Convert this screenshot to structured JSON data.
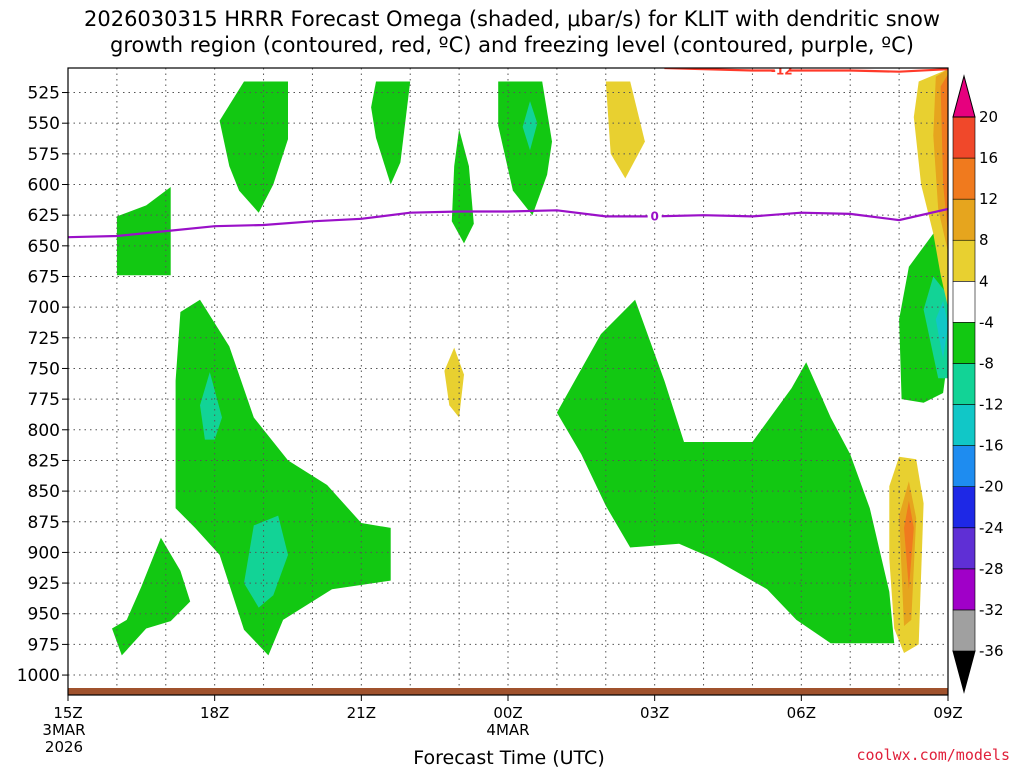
{
  "title": {
    "line1": "2026030315 HRRR Forecast Omega (shaded, μbar/s) for KLIT with dendritic snow",
    "line2": "growth region (contoured, red, ºC) and freezing level (contoured, purple, ºC)"
  },
  "credit": "coolwx.com/models",
  "chart_data": {
    "type": "time-height contour",
    "title": "2026030315 HRRR Forecast Omega (shaded, μbar/s) for KLIT with dendritic snow growth region (contoured, red, ºC) and freezing level (contoured, purple, ºC)",
    "xlabel": "Forecast Time (UTC)",
    "ylabel": "",
    "x_range_hours": [
      0,
      18
    ],
    "x_ticks": [
      {
        "hour": 0,
        "label": "15Z",
        "sub1": "3MAR",
        "sub2": "2026"
      },
      {
        "hour": 3,
        "label": "18Z",
        "sub1": "",
        "sub2": ""
      },
      {
        "hour": 6,
        "label": "21Z",
        "sub1": "",
        "sub2": ""
      },
      {
        "hour": 9,
        "label": "00Z",
        "sub1": "4MAR",
        "sub2": ""
      },
      {
        "hour": 12,
        "label": "03Z",
        "sub1": "",
        "sub2": ""
      },
      {
        "hour": 15,
        "label": "06Z",
        "sub1": "",
        "sub2": ""
      },
      {
        "hour": 18,
        "label": "09Z",
        "sub1": "",
        "sub2": ""
      }
    ],
    "y_range_hpa": [
      1013,
      505
    ],
    "y_ticks": [
      525,
      550,
      575,
      600,
      625,
      650,
      675,
      700,
      725,
      750,
      775,
      800,
      825,
      850,
      875,
      900,
      925,
      950,
      975,
      1000
    ],
    "freezing_level": {
      "label": "0",
      "color": "#9a10c8",
      "points": [
        [
          0,
          643
        ],
        [
          1,
          642
        ],
        [
          2,
          638
        ],
        [
          3,
          634
        ],
        [
          4,
          633
        ],
        [
          5,
          630
        ],
        [
          6,
          628
        ],
        [
          7,
          623
        ],
        [
          8,
          622
        ],
        [
          9,
          622
        ],
        [
          10,
          621
        ],
        [
          11,
          626
        ],
        [
          12,
          626
        ],
        [
          13,
          625
        ],
        [
          14,
          626
        ],
        [
          15,
          623
        ],
        [
          16,
          624
        ],
        [
          17,
          629
        ],
        [
          18,
          620
        ]
      ]
    },
    "dgz_contour": {
      "label": "-12",
      "color": "#ff3a2a",
      "points": [
        [
          12.2,
          505
        ],
        [
          13,
          506
        ],
        [
          14,
          507
        ],
        [
          15,
          507
        ],
        [
          16,
          507
        ],
        [
          17,
          508
        ],
        [
          18,
          506
        ]
      ]
    },
    "surface_color": "#a0522d",
    "colorbar": {
      "levels": [
        -36,
        -32,
        -28,
        -24,
        -20,
        -16,
        -12,
        -8,
        -4,
        4,
        8,
        12,
        16,
        20
      ],
      "labels": [
        "-36",
        "-32",
        "-28",
        "-24",
        "-20",
        "-16",
        "-12",
        "-8",
        "-4",
        "4",
        "8",
        "12",
        "16",
        "20"
      ],
      "colors": [
        "#000000",
        "#a0a0a0",
        "#a000c8",
        "#5f2fd5",
        "#1e28e6",
        "#1e8cf0",
        "#11c7c7",
        "#12d396",
        "#12c812",
        "#ffffff",
        "#e8d030",
        "#e6a51e",
        "#f07a1e",
        "#f0482a",
        "#ee1a5a",
        "#e6007e"
      ]
    },
    "omega_regions": [
      {
        "value": -6,
        "pts": [
          [
            3.6,
            516
          ],
          [
            4.5,
            516
          ],
          [
            4.5,
            563
          ],
          [
            4.2,
            600
          ],
          [
            3.9,
            623
          ],
          [
            3.5,
            605
          ],
          [
            3.3,
            585
          ],
          [
            3.1,
            548
          ]
        ]
      },
      {
        "value": -6,
        "pts": [
          [
            6.3,
            516
          ],
          [
            7,
            516
          ],
          [
            6.8,
            582
          ],
          [
            6.6,
            600
          ],
          [
            6.3,
            562
          ],
          [
            6.2,
            537
          ]
        ]
      },
      {
        "value": -6,
        "pts": [
          [
            9.3,
            516
          ],
          [
            9.7,
            516
          ],
          [
            9.9,
            565
          ],
          [
            9.8,
            592
          ],
          [
            9.5,
            625
          ],
          [
            9.1,
            605
          ],
          [
            8.8,
            552
          ],
          [
            8.8,
            516
          ]
        ]
      },
      {
        "value": -6,
        "pts": [
          [
            8.0,
            555
          ],
          [
            8.2,
            585
          ],
          [
            8.3,
            632
          ],
          [
            8.1,
            648
          ],
          [
            7.85,
            630
          ],
          [
            7.9,
            585
          ]
        ]
      },
      {
        "value": -6,
        "pts": [
          [
            1.0,
            626
          ],
          [
            1.6,
            617
          ],
          [
            2.1,
            602
          ],
          [
            2.1,
            674
          ],
          [
            1.0,
            674
          ]
        ]
      },
      {
        "value": -6,
        "pts": [
          [
            2.2,
            864
          ],
          [
            2.2,
            760
          ],
          [
            2.3,
            704
          ],
          [
            2.7,
            694
          ],
          [
            3.3,
            732
          ],
          [
            3.8,
            790
          ],
          [
            4.5,
            825
          ],
          [
            5.3,
            845
          ],
          [
            6.0,
            876
          ],
          [
            6.6,
            880
          ],
          [
            6.6,
            923
          ],
          [
            5.4,
            930
          ],
          [
            4.4,
            955
          ],
          [
            4.1,
            984
          ],
          [
            3.6,
            963
          ],
          [
            3.1,
            902
          ],
          [
            2.6,
            880
          ]
        ]
      },
      {
        "value": -6,
        "pts": [
          [
            0.9,
            962
          ],
          [
            1.2,
            955
          ],
          [
            1.5,
            928
          ],
          [
            1.9,
            888
          ],
          [
            2.3,
            915
          ],
          [
            2.5,
            940
          ],
          [
            2.1,
            956
          ],
          [
            1.6,
            962
          ],
          [
            1.1,
            984
          ]
        ]
      },
      {
        "value": -6,
        "pts": [
          [
            10.0,
            786
          ],
          [
            10.9,
            722
          ],
          [
            11.6,
            694
          ],
          [
            12.2,
            760
          ],
          [
            12.6,
            810
          ],
          [
            14.0,
            810
          ],
          [
            14.8,
            766
          ],
          [
            15.1,
            745
          ],
          [
            15.6,
            790
          ],
          [
            16.0,
            820
          ],
          [
            16.4,
            864
          ],
          [
            16.8,
            932
          ],
          [
            16.9,
            974
          ],
          [
            15.6,
            974
          ],
          [
            14.9,
            955
          ],
          [
            14.3,
            930
          ],
          [
            13.2,
            905
          ],
          [
            12.5,
            893
          ],
          [
            11.5,
            896
          ],
          [
            11.0,
            862
          ],
          [
            10.5,
            820
          ]
        ]
      },
      {
        "value": -6,
        "pts": [
          [
            17.05,
            775
          ],
          [
            17.0,
            710
          ],
          [
            17.2,
            667
          ],
          [
            17.7,
            640
          ],
          [
            18.0,
            647
          ],
          [
            18.0,
            740
          ],
          [
            17.9,
            770
          ],
          [
            17.5,
            778
          ]
        ]
      },
      {
        "value": -10,
        "pts": [
          [
            17.5,
            702
          ],
          [
            17.7,
            675
          ],
          [
            18.0,
            690
          ],
          [
            18.0,
            758
          ],
          [
            17.8,
            758
          ]
        ]
      },
      {
        "value": -14,
        "pts": [
          [
            17.75,
            710
          ],
          [
            17.9,
            695
          ],
          [
            18.0,
            715
          ],
          [
            17.9,
            742
          ]
        ]
      },
      {
        "value": -10,
        "pts": [
          [
            2.7,
            780
          ],
          [
            2.9,
            753
          ],
          [
            3.15,
            790
          ],
          [
            3.0,
            808
          ],
          [
            2.8,
            808
          ]
        ]
      },
      {
        "value": -10,
        "pts": [
          [
            3.6,
            925
          ],
          [
            3.8,
            878
          ],
          [
            4.3,
            870
          ],
          [
            4.5,
            902
          ],
          [
            4.2,
            935
          ],
          [
            3.9,
            945
          ]
        ]
      },
      {
        "value": -10,
        "pts": [
          [
            9.3,
            553
          ],
          [
            9.45,
            532
          ],
          [
            9.6,
            550
          ],
          [
            9.45,
            572
          ]
        ]
      },
      {
        "value": 6,
        "pts": [
          [
            7.7,
            752
          ],
          [
            7.9,
            733
          ],
          [
            8.1,
            755
          ],
          [
            8.0,
            790
          ],
          [
            7.8,
            780
          ]
        ]
      },
      {
        "value": 6,
        "pts": [
          [
            11.0,
            516
          ],
          [
            11.5,
            516
          ],
          [
            11.8,
            565
          ],
          [
            11.4,
            595
          ],
          [
            11.1,
            575
          ]
        ]
      },
      {
        "value": 6,
        "pts": [
          [
            16.8,
            846
          ],
          [
            17.0,
            822
          ],
          [
            17.35,
            824
          ],
          [
            17.5,
            860
          ],
          [
            17.4,
            975
          ],
          [
            17.1,
            982
          ],
          [
            16.9,
            962
          ],
          [
            16.8,
            905
          ]
        ]
      },
      {
        "value": 10,
        "pts": [
          [
            17.0,
            870
          ],
          [
            17.2,
            842
          ],
          [
            17.35,
            872
          ],
          [
            17.25,
            955
          ],
          [
            17.1,
            960
          ]
        ]
      },
      {
        "value": 14,
        "pts": [
          [
            17.1,
            880
          ],
          [
            17.2,
            858
          ],
          [
            17.3,
            880
          ],
          [
            17.2,
            930
          ]
        ]
      },
      {
        "value": 6,
        "pts": [
          [
            17.4,
            516
          ],
          [
            18.0,
            506
          ],
          [
            18.0,
            700
          ],
          [
            17.85,
            674
          ],
          [
            17.7,
            640
          ],
          [
            17.45,
            600
          ],
          [
            17.3,
            545
          ]
        ]
      },
      {
        "value": 10,
        "pts": [
          [
            17.75,
            512
          ],
          [
            18.0,
            506
          ],
          [
            18.0,
            655
          ],
          [
            17.8,
            620
          ],
          [
            17.7,
            560
          ]
        ]
      },
      {
        "value": 14,
        "pts": [
          [
            17.85,
            520
          ],
          [
            18.0,
            510
          ],
          [
            18.0,
            640
          ],
          [
            17.9,
            600
          ]
        ]
      }
    ]
  }
}
